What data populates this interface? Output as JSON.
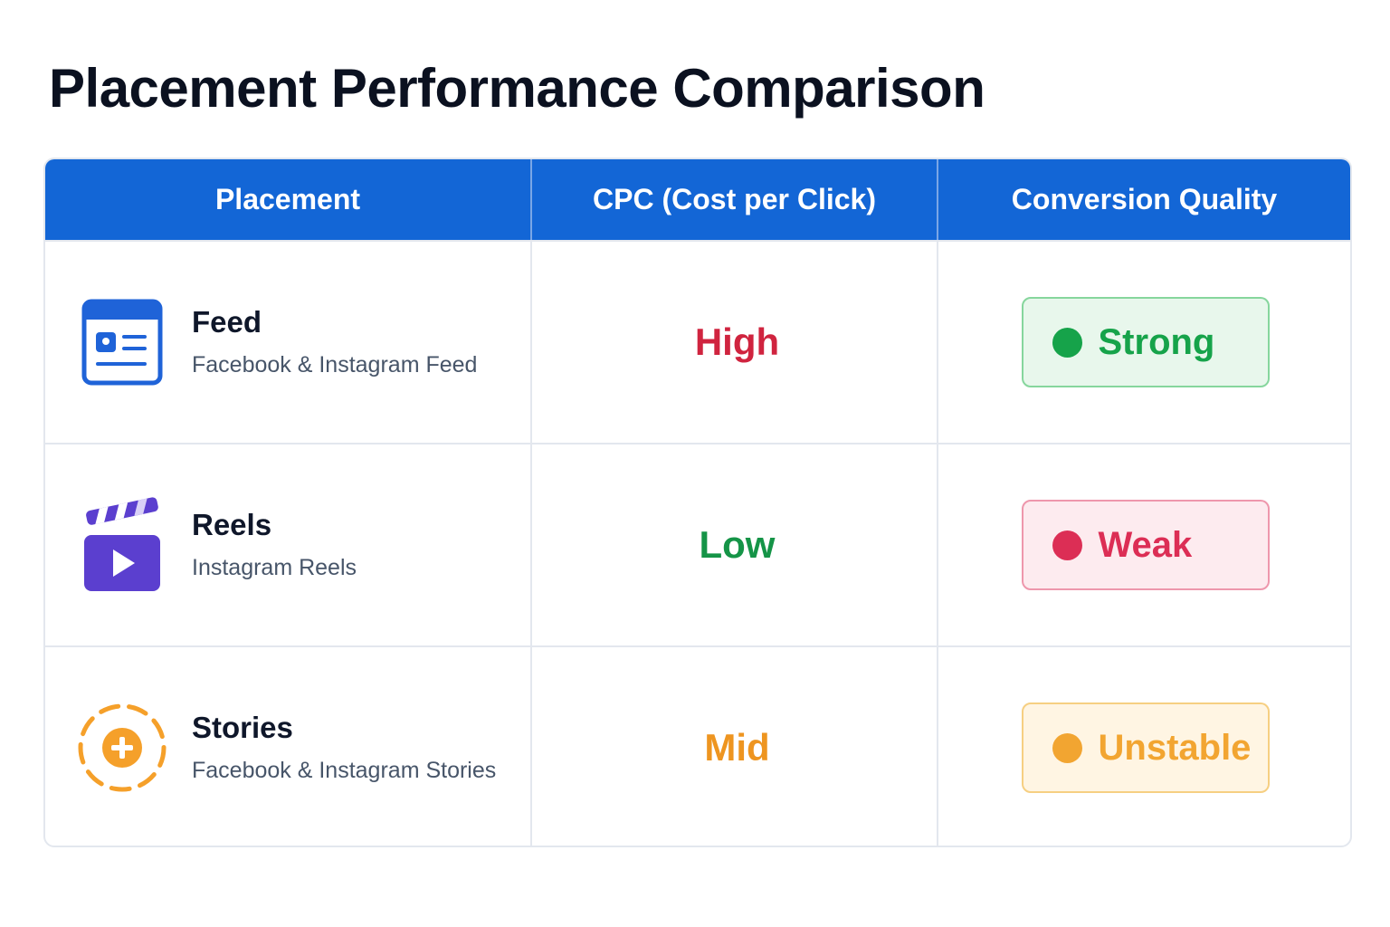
{
  "title": "Placement Performance Comparison",
  "chart_data": {
    "type": "table",
    "columns": [
      "Placement",
      "CPC (Cost per Click)",
      "Conversion Quality"
    ],
    "rows": [
      {
        "name": "Feed",
        "subtitle": "Facebook & Instagram Feed",
        "icon": "feed-icon",
        "cpc": "High",
        "cpc_color": "#d0243f",
        "quality": "Strong",
        "quality_color": "#16a34a",
        "badge_bg": "#e8f7ec",
        "badge_border": "#86d69d"
      },
      {
        "name": "Reels",
        "subtitle": "Instagram Reels",
        "icon": "reels-icon",
        "cpc": "Low",
        "cpc_color": "#159447",
        "quality": "Weak",
        "quality_color": "#dc2e55",
        "badge_bg": "#fdebef",
        "badge_border": "#ee97ac"
      },
      {
        "name": "Stories",
        "subtitle": "Facebook & Instagram Stories",
        "icon": "stories-icon",
        "cpc": "Mid",
        "cpc_color": "#ee9520",
        "quality": "Unstable",
        "quality_color": "#f2a531",
        "badge_bg": "#fff5e3",
        "badge_border": "#f6cf82"
      }
    ]
  }
}
